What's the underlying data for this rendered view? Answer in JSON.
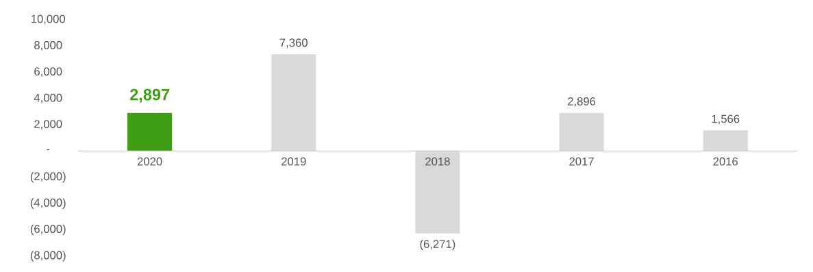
{
  "chart_data": {
    "type": "bar",
    "categories": [
      "2020",
      "2019",
      "2018",
      "2017",
      "2016"
    ],
    "values": [
      2897,
      7360,
      -6271,
      2896,
      1566
    ],
    "colors": [
      "#3f9e14",
      "#d9d9d9",
      "#d9d9d9",
      "#d9d9d9",
      "#d9d9d9"
    ],
    "value_labels": [
      "2,897",
      "7,360",
      "(6,271)",
      "2,896",
      "1,566"
    ],
    "ylim": [
      -8000,
      10000
    ],
    "yticks": [
      {
        "value": -8000,
        "label": "(8,000)"
      },
      {
        "value": -6000,
        "label": "(6,000)"
      },
      {
        "value": -4000,
        "label": "(4,000)"
      },
      {
        "value": -2000,
        "label": "(2,000)"
      },
      {
        "value": 0,
        "label": "-"
      },
      {
        "value": 2000,
        "label": "2,000"
      },
      {
        "value": 4000,
        "label": "4,000"
      },
      {
        "value": 6000,
        "label": "6,000"
      },
      {
        "value": 8000,
        "label": "8,000"
      },
      {
        "value": 10000,
        "label": "10,000"
      }
    ],
    "grid": false
  }
}
